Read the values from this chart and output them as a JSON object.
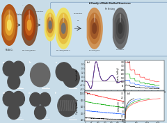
{
  "bg_color": "#c8dce8",
  "top_bg": "#c8dce8",
  "right_box_bg": "#cce0ee",
  "title_text": "A Family of Multi-Shelled Structures",
  "subtitle_text": "N² Etching",
  "shell_labels": [
    "MS-Al₂O₃",
    "MS-Al₂O₃@MOFs",
    "MS-Al₂O₃@MOFs-C",
    "MS-Al₂O₃@NiO",
    "MS-Carbon"
  ],
  "arrow_labels_left": [
    "Coating",
    "Calcination\nN₂"
  ],
  "arrow_label_right": "Calcination\nair",
  "panel_labels": [
    "a",
    "b",
    "c",
    "d",
    "e",
    "f"
  ],
  "graph_labels": [
    "(a)",
    "(b)",
    "(c)",
    "(d)"
  ],
  "shell_colors_yellow": [
    "#f5e060",
    "#e8a830",
    "#c87820",
    "#b05010"
  ],
  "shell_colors_orange": [
    "#e8a030",
    "#c86018",
    "#a04010",
    "#805030"
  ],
  "shell_colors_gray_yellow": [
    "#707070",
    "#c08030",
    "#e8c040",
    "#f0e060"
  ],
  "shell_colors_brown": [
    "#804020",
    "#a05828",
    "#c07838",
    "#d09050"
  ],
  "shell_colors_dark": [
    "#383838",
    "#484848",
    "#585858",
    "#686868"
  ],
  "cv_colors": [
    "#9060c0",
    "#c03030",
    "#3040b0"
  ],
  "cv_labels": [
    "1st cycle",
    "2nd cycle",
    "3rd cycle"
  ],
  "rate_colors": [
    "#000000",
    "#2060ff",
    "#00aa00",
    "#ff3030"
  ],
  "rate_labels": [
    "TS-Al₂O₃ oxide",
    "TS-Al₂O₃@C (MOF)",
    "TS-Al₂O₃@C stable",
    "TS-Al₂O₃@C porous"
  ],
  "cycle_colors": [
    "#000000",
    "#2060ff",
    "#00aa00",
    "#ff3030"
  ],
  "galv_colors": [
    "#000000",
    "#2060ff",
    "#00aa00",
    "#ff3030"
  ],
  "tem_bg": "#101010",
  "tem_ring1": "#4a4a4a",
  "tem_ring2": "#787878",
  "tem_ring3": "#b8b8b8",
  "tem_ring4": "#d8d8d8"
}
